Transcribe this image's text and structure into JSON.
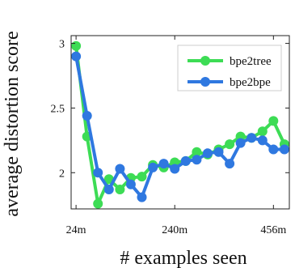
{
  "chart_data": {
    "type": "line",
    "xlabel": "# examples seen",
    "ylabel": "average distortion score",
    "x_tick_labels": [
      "24m",
      "240m",
      "456m"
    ],
    "x_ticks": [
      1,
      10,
      19
    ],
    "xlim": [
      0.55,
      20.45
    ],
    "y_ticks": [
      2,
      2.5,
      3
    ],
    "y_tick_labels": [
      "2",
      "2.5",
      "3"
    ],
    "ylim": [
      1.72,
      3.06
    ],
    "grid": false,
    "legend_position": "top-right",
    "series": [
      {
        "name": "bpe2tree",
        "color": "#3ddc55",
        "values": [
          {
            "x": 1,
            "y": 2.98
          },
          {
            "x": 2,
            "y": 2.28
          },
          {
            "x": 3,
            "y": 1.76
          },
          {
            "x": 4,
            "y": 1.95
          },
          {
            "x": 5,
            "y": 1.87
          },
          {
            "x": 6,
            "y": 1.96
          },
          {
            "x": 7,
            "y": 1.97
          },
          {
            "x": 8,
            "y": 2.06
          },
          {
            "x": 9,
            "y": 2.04
          },
          {
            "x": 10,
            "y": 2.08
          },
          {
            "x": 11,
            "y": 2.09
          },
          {
            "x": 12,
            "y": 2.16
          },
          {
            "x": 13,
            "y": 2.14
          },
          {
            "x": 14,
            "y": 2.18
          },
          {
            "x": 15,
            "y": 2.22
          },
          {
            "x": 16,
            "y": 2.28
          },
          {
            "x": 17,
            "y": 2.27
          },
          {
            "x": 18,
            "y": 2.32
          },
          {
            "x": 19,
            "y": 2.4
          },
          {
            "x": 20,
            "y": 2.22
          }
        ]
      },
      {
        "name": "bpe2bpe",
        "color": "#2f78e0",
        "values": [
          {
            "x": 1,
            "y": 2.9
          },
          {
            "x": 2,
            "y": 2.44
          },
          {
            "x": 3,
            "y": 2.0
          },
          {
            "x": 4,
            "y": 1.87
          },
          {
            "x": 5,
            "y": 2.03
          },
          {
            "x": 6,
            "y": 1.91
          },
          {
            "x": 7,
            "y": 1.81
          },
          {
            "x": 8,
            "y": 2.04
          },
          {
            "x": 9,
            "y": 2.07
          },
          {
            "x": 10,
            "y": 2.03
          },
          {
            "x": 11,
            "y": 2.09
          },
          {
            "x": 12,
            "y": 2.1
          },
          {
            "x": 13,
            "y": 2.15
          },
          {
            "x": 14,
            "y": 2.16
          },
          {
            "x": 15,
            "y": 2.07
          },
          {
            "x": 16,
            "y": 2.23
          },
          {
            "x": 17,
            "y": 2.27
          },
          {
            "x": 18,
            "y": 2.25
          },
          {
            "x": 19,
            "y": 2.18
          },
          {
            "x": 20,
            "y": 2.18
          }
        ]
      }
    ]
  }
}
